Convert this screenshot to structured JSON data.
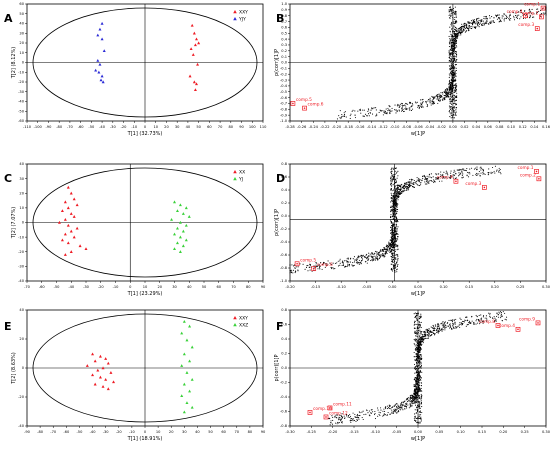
{
  "figure": {
    "panels": [
      {
        "id": "A",
        "letter": "A",
        "kind": "scores",
        "xlabel": "T[1] (32.73%)",
        "ylabel": "T[2] (8.12%)",
        "xticks": [
          "-110",
          "-100",
          "-90",
          "-80",
          "-70",
          "-60",
          "-50",
          "-40",
          "-30",
          "-20",
          "-10",
          "0",
          "10",
          "20",
          "30",
          "40",
          "50",
          "60",
          "70",
          "80",
          "90",
          "100",
          "110"
        ],
        "yticks": [
          "-60",
          "-50",
          "-40",
          "-30",
          "-20",
          "-10",
          "0",
          "10",
          "20",
          "30",
          "40",
          "50",
          "60"
        ],
        "legend": [
          "XXY",
          "YJY"
        ]
      },
      {
        "id": "B",
        "letter": "B",
        "kind": "splot",
        "xlabel": "w[1]P",
        "ylabel": "p(corr)[1]P",
        "xticks": [
          "-0.28",
          "-0.26",
          "-0.24",
          "-0.22",
          "-0.20",
          "-0.18",
          "-0.16",
          "-0.14",
          "-0.12",
          "-0.10",
          "-0.08",
          "-0.06",
          "-0.04",
          "-0.02",
          "0.00",
          "0.02",
          "0.04",
          "0.06",
          "0.08",
          "0.10",
          "0.12",
          "0.14",
          "0.16"
        ],
        "yticks": [
          "-1.0",
          "-0.9",
          "-0.8",
          "-0.7",
          "-0.6",
          "-0.5",
          "-0.4",
          "-0.3",
          "-0.2",
          "-0.1",
          "0.0",
          "0.1",
          "0.2",
          "0.3",
          "0.4",
          "0.5",
          "0.6",
          "0.7",
          "0.8",
          "0.9",
          "1.0"
        ],
        "comps": [
          "comp.1",
          "comp.2",
          "comp.3",
          "comp.4",
          "comp.5",
          "comp.6"
        ]
      },
      {
        "id": "C",
        "letter": "C",
        "kind": "scores",
        "xlabel": "T[1] (23.29%)",
        "ylabel": "T[2] (7.07%)",
        "xticks": [
          "-70",
          "-60",
          "-50",
          "-40",
          "-30",
          "-20",
          "-10",
          "0",
          "10",
          "20",
          "30",
          "40",
          "50",
          "60",
          "70",
          "80",
          "90"
        ],
        "yticks": [
          "-40",
          "-30",
          "-20",
          "-10",
          "0",
          "10",
          "20",
          "30",
          "40"
        ],
        "legend": [
          "XX",
          "YJ"
        ]
      },
      {
        "id": "D",
        "letter": "D",
        "kind": "splot",
        "xlabel": "w[1]P",
        "ylabel": "p(corr)[1]P",
        "xticks": [
          "-0.20",
          "-0.15",
          "-0.10",
          "-0.05",
          "0.00",
          "0.05",
          "0.10",
          "0.15",
          "0.20",
          "0.25",
          "0.30"
        ],
        "yticks": [
          "-1.0",
          "-0.8",
          "-0.6",
          "-0.4",
          "-0.2",
          "0.0",
          "0.2",
          "0.4",
          "0.6",
          "0.8"
        ],
        "comps": [
          "comp.1",
          "comp.2",
          "comp.3",
          "comp.4",
          "comp.5",
          "comp.6"
        ]
      },
      {
        "id": "E",
        "letter": "E",
        "kind": "scores",
        "xlabel": "T[1] (18.91%)",
        "ylabel": "T[2] (8.63%)",
        "xticks": [
          "-90",
          "-80",
          "-70",
          "-60",
          "-50",
          "-40",
          "-30",
          "-20",
          "-10",
          "0",
          "10",
          "20",
          "30",
          "40",
          "50",
          "60",
          "70",
          "80",
          "90"
        ],
        "yticks": [
          "-40",
          "-20",
          "0",
          "20",
          "40"
        ],
        "legend": [
          "XXY",
          "XXZ"
        ]
      },
      {
        "id": "F",
        "letter": "F",
        "kind": "splot",
        "xlabel": "w[1]P",
        "ylabel": "p(corr)[1]P",
        "xticks": [
          "-0.30",
          "-0.25",
          "-0.20",
          "-0.15",
          "-0.10",
          "-0.05",
          "0.00",
          "0.05",
          "0.10",
          "0.15",
          "0.20",
          "0.25",
          "0.30"
        ],
        "yticks": [
          "-0.8",
          "-0.6",
          "-0.4",
          "-0.2",
          "0.0",
          "0.2",
          "0.4",
          "0.6",
          "0.8"
        ],
        "comps": [
          "comp.8",
          "comp.9",
          "comp.4",
          "comp.10",
          "comp.11",
          "comp.12"
        ]
      }
    ]
  },
  "colors": {
    "group1": "#ee1c25",
    "group2": "#2b2bd6",
    "group3": "#3ad13a",
    "axis": "#000000",
    "points": "#000000"
  },
  "chart_data": [
    {
      "panel": "A",
      "type": "scatter",
      "title": "",
      "xlabel": "T[1] (32.73%)",
      "ylabel": "T[2] (8.12%)",
      "xlim": [
        -110,
        110
      ],
      "ylim": [
        -60,
        60
      ],
      "ellipse": true,
      "series": [
        {
          "name": "XXY",
          "color": "#ee1c25",
          "x": [
            44,
            46,
            48,
            50,
            47,
            43,
            45,
            49,
            42,
            46,
            48,
            47
          ],
          "y": [
            38,
            30,
            24,
            20,
            18,
            14,
            8,
            -2,
            -14,
            -20,
            -22,
            -28
          ]
        },
        {
          "name": "YJY",
          "color": "#2b2bd6",
          "x": [
            -40,
            -42,
            -44,
            -40,
            -38,
            -44,
            -42,
            -46,
            -43,
            -40,
            -41,
            -39
          ],
          "y": [
            40,
            34,
            28,
            24,
            12,
            2,
            -2,
            -8,
            -10,
            -14,
            -18,
            -20
          ]
        }
      ]
    },
    {
      "panel": "B",
      "type": "scatter",
      "title": "",
      "xlabel": "w[1]P",
      "ylabel": "p(corr)[1]P",
      "xlim": [
        -0.28,
        0.16
      ],
      "ylim": [
        -1.0,
        1.0
      ],
      "grid": false,
      "labeled_points": [
        {
          "label": "comp.1",
          "x": 0.155,
          "y": 0.93
        },
        {
          "label": "comp.2",
          "x": 0.152,
          "y": 0.78
        },
        {
          "label": "comp.3",
          "x": 0.145,
          "y": 0.58
        },
        {
          "label": "comp.4",
          "x": 0.125,
          "y": 0.8
        },
        {
          "label": "comp.5",
          "x": -0.275,
          "y": -0.7
        },
        {
          "label": "comp.6",
          "x": -0.255,
          "y": -0.78
        }
      ]
    },
    {
      "panel": "C",
      "type": "scatter",
      "title": "",
      "xlabel": "T[1] (23.29%)",
      "ylabel": "T[2] (7.07%)",
      "xlim": [
        -70,
        90
      ],
      "ylim": [
        -40,
        40
      ],
      "ellipse": true,
      "series": [
        {
          "name": "XX",
          "color": "#ee1c25",
          "x": [
            -42,
            -40,
            -38,
            -44,
            -36,
            -42,
            -46,
            -40,
            -38,
            -44,
            -48,
            -42,
            -36,
            -40,
            -44,
            -38,
            -46,
            -42,
            -34,
            -30,
            -40,
            -44
          ],
          "y": [
            24,
            20,
            16,
            14,
            12,
            10,
            8,
            6,
            4,
            2,
            0,
            -2,
            -4,
            -6,
            -8,
            -10,
            -12,
            -14,
            -16,
            -18,
            -20,
            -22
          ]
        },
        {
          "name": "YJ",
          "color": "#3ad13a",
          "x": [
            30,
            34,
            38,
            32,
            36,
            40,
            28,
            34,
            38,
            32,
            36,
            30,
            34,
            38,
            32,
            36,
            30,
            34
          ],
          "y": [
            14,
            12,
            10,
            8,
            6,
            4,
            2,
            0,
            -2,
            -4,
            -6,
            -8,
            -10,
            -12,
            -14,
            -16,
            -18,
            -20
          ]
        }
      ]
    },
    {
      "panel": "D",
      "type": "scatter",
      "title": "",
      "xlabel": "w[1]P",
      "ylabel": "p(corr)[1]P",
      "xlim": [
        -0.22,
        0.32
      ],
      "ylim": [
        -1.0,
        0.9
      ],
      "grid": false,
      "labeled_points": [
        {
          "label": "comp.1",
          "x": 0.3,
          "y": 0.78
        },
        {
          "label": "comp.2",
          "x": 0.305,
          "y": 0.66
        },
        {
          "label": "comp.3",
          "x": 0.19,
          "y": 0.52
        },
        {
          "label": "comp.4",
          "x": 0.13,
          "y": 0.62
        },
        {
          "label": "comp.5",
          "x": -0.205,
          "y": -0.72
        },
        {
          "label": "comp.6",
          "x": -0.17,
          "y": -0.8
        }
      ]
    },
    {
      "panel": "E",
      "type": "scatter",
      "title": "",
      "xlabel": "T[1] (18.91%)",
      "ylabel": "T[2] (8.63%)",
      "xlim": [
        -90,
        90
      ],
      "ylim": [
        -50,
        50
      ],
      "ellipse": true,
      "series": [
        {
          "name": "XXY",
          "color": "#ee1c25",
          "x": [
            -40,
            -34,
            -30,
            -38,
            -28,
            -44,
            -32,
            -36,
            -26,
            -40,
            -34,
            -30,
            -24,
            -38,
            -32,
            -28
          ],
          "y": [
            12,
            10,
            8,
            6,
            4,
            2,
            0,
            -2,
            -4,
            -6,
            -8,
            -10,
            -12,
            -14,
            -16,
            -18
          ]
        },
        {
          "name": "XXZ",
          "color": "#3ad13a",
          "x": [
            30,
            34,
            28,
            32,
            36,
            30,
            34,
            28,
            32,
            36,
            30,
            34,
            28,
            32,
            36,
            30
          ],
          "y": [
            40,
            36,
            30,
            24,
            18,
            12,
            6,
            2,
            -4,
            -10,
            -14,
            -20,
            -24,
            -30,
            -34,
            -38
          ]
        }
      ]
    },
    {
      "panel": "F",
      "type": "scatter",
      "title": "",
      "xlabel": "w[1]P",
      "ylabel": "p(corr)[1]P",
      "xlim": [
        -0.32,
        0.32
      ],
      "ylim": [
        -0.9,
        0.9
      ],
      "grid": false,
      "labeled_points": [
        {
          "label": "comp.9",
          "x": 0.3,
          "y": 0.7
        },
        {
          "label": "comp.8",
          "x": 0.2,
          "y": 0.66
        },
        {
          "label": "comp.4",
          "x": 0.25,
          "y": 0.6
        },
        {
          "label": "comp.10",
          "x": -0.27,
          "y": -0.69
        },
        {
          "label": "comp.11",
          "x": -0.22,
          "y": -0.62
        },
        {
          "label": "comp.12",
          "x": -0.23,
          "y": -0.76
        }
      ]
    }
  ]
}
